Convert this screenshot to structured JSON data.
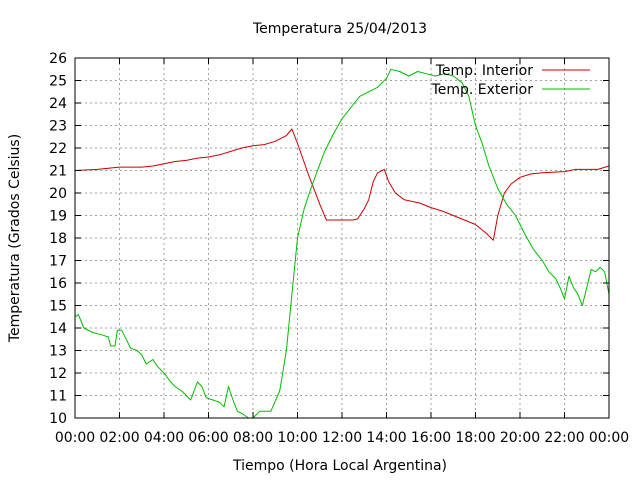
{
  "chart_data": {
    "type": "line",
    "title": "Temperatura 25/04/2013",
    "xlabel": "Tiempo (Hora Local Argentina)",
    "ylabel": "Temperatura (Grados Celsius)",
    "xlim": [
      0,
      24
    ],
    "ylim": [
      10,
      26
    ],
    "x_ticks": [
      "00:00",
      "02:00",
      "04:00",
      "06:00",
      "08:00",
      "10:00",
      "12:00",
      "14:00",
      "16:00",
      "18:00",
      "20:00",
      "22:00",
      "00:00"
    ],
    "y_ticks": [
      "10",
      "11",
      "12",
      "13",
      "14",
      "15",
      "16",
      "17",
      "18",
      "19",
      "20",
      "21",
      "22",
      "23",
      "24",
      "25",
      "26"
    ],
    "grid": true,
    "legend_position": "top-right",
    "series": [
      {
        "name": "Temp. Interior",
        "color": "#cc0000",
        "points": [
          [
            0.0,
            21.0
          ],
          [
            1.0,
            21.05
          ],
          [
            1.5,
            21.1
          ],
          [
            2.0,
            21.15
          ],
          [
            3.0,
            21.15
          ],
          [
            3.5,
            21.2
          ],
          [
            4.0,
            21.3
          ],
          [
            4.5,
            21.4
          ],
          [
            5.0,
            21.45
          ],
          [
            5.5,
            21.55
          ],
          [
            6.0,
            21.6
          ],
          [
            6.5,
            21.7
          ],
          [
            7.0,
            21.85
          ],
          [
            7.5,
            22.0
          ],
          [
            8.0,
            22.1
          ],
          [
            8.5,
            22.15
          ],
          [
            9.0,
            22.3
          ],
          [
            9.5,
            22.55
          ],
          [
            9.75,
            22.85
          ],
          [
            10.0,
            22.2
          ],
          [
            10.5,
            20.8
          ],
          [
            11.0,
            19.5
          ],
          [
            11.3,
            18.8
          ],
          [
            12.0,
            18.8
          ],
          [
            12.5,
            18.8
          ],
          [
            12.7,
            18.85
          ],
          [
            13.0,
            19.3
          ],
          [
            13.2,
            19.7
          ],
          [
            13.4,
            20.5
          ],
          [
            13.6,
            20.9
          ],
          [
            13.9,
            21.05
          ],
          [
            14.1,
            20.5
          ],
          [
            14.4,
            20.0
          ],
          [
            14.8,
            19.7
          ],
          [
            15.5,
            19.55
          ],
          [
            16.0,
            19.35
          ],
          [
            16.5,
            19.2
          ],
          [
            17.0,
            19.0
          ],
          [
            17.5,
            18.8
          ],
          [
            18.0,
            18.6
          ],
          [
            18.5,
            18.2
          ],
          [
            18.8,
            17.9
          ],
          [
            19.0,
            19.0
          ],
          [
            19.3,
            20.0
          ],
          [
            19.6,
            20.4
          ],
          [
            20.0,
            20.7
          ],
          [
            20.5,
            20.85
          ],
          [
            21.0,
            20.9
          ],
          [
            22.0,
            20.95
          ],
          [
            22.5,
            21.05
          ],
          [
            23.5,
            21.05
          ],
          [
            24.0,
            21.2
          ]
        ]
      },
      {
        "name": "Temp. Exterior",
        "color": "#00bb00",
        "points": [
          [
            0.0,
            14.5
          ],
          [
            0.15,
            14.6
          ],
          [
            0.4,
            14.0
          ],
          [
            0.8,
            13.8
          ],
          [
            1.2,
            13.7
          ],
          [
            1.5,
            13.6
          ],
          [
            1.6,
            13.2
          ],
          [
            1.8,
            13.2
          ],
          [
            1.9,
            13.9
          ],
          [
            2.1,
            13.9
          ],
          [
            2.3,
            13.5
          ],
          [
            2.5,
            13.1
          ],
          [
            2.8,
            13.0
          ],
          [
            3.0,
            12.8
          ],
          [
            3.2,
            12.4
          ],
          [
            3.5,
            12.6
          ],
          [
            3.7,
            12.3
          ],
          [
            4.0,
            12.0
          ],
          [
            4.3,
            11.6
          ],
          [
            4.5,
            11.4
          ],
          [
            4.8,
            11.2
          ],
          [
            5.0,
            11.0
          ],
          [
            5.2,
            10.8
          ],
          [
            5.5,
            11.6
          ],
          [
            5.7,
            11.4
          ],
          [
            5.9,
            10.9
          ],
          [
            6.2,
            10.8
          ],
          [
            6.5,
            10.7
          ],
          [
            6.7,
            10.5
          ],
          [
            6.9,
            11.4
          ],
          [
            7.1,
            10.8
          ],
          [
            7.3,
            10.3
          ],
          [
            7.5,
            10.2
          ],
          [
            7.8,
            10.0
          ],
          [
            8.0,
            10.0
          ],
          [
            8.3,
            10.3
          ],
          [
            8.8,
            10.3
          ],
          [
            9.2,
            11.2
          ],
          [
            9.5,
            13.0
          ],
          [
            9.75,
            15.5
          ],
          [
            10.0,
            18.0
          ],
          [
            10.3,
            19.3
          ],
          [
            10.6,
            20.2
          ],
          [
            10.9,
            21.0
          ],
          [
            11.2,
            21.8
          ],
          [
            11.6,
            22.6
          ],
          [
            12.0,
            23.3
          ],
          [
            12.4,
            23.8
          ],
          [
            12.8,
            24.3
          ],
          [
            13.2,
            24.5
          ],
          [
            13.6,
            24.7
          ],
          [
            14.0,
            25.1
          ],
          [
            14.2,
            25.5
          ],
          [
            14.6,
            25.4
          ],
          [
            15.0,
            25.2
          ],
          [
            15.4,
            25.4
          ],
          [
            15.8,
            25.3
          ],
          [
            16.2,
            25.2
          ],
          [
            16.6,
            25.3
          ],
          [
            17.0,
            25.2
          ],
          [
            17.4,
            24.9
          ],
          [
            17.7,
            24.3
          ],
          [
            18.0,
            23.0
          ],
          [
            18.3,
            22.2
          ],
          [
            18.6,
            21.2
          ],
          [
            19.0,
            20.2
          ],
          [
            19.4,
            19.5
          ],
          [
            19.8,
            19.0
          ],
          [
            20.2,
            18.2
          ],
          [
            20.6,
            17.5
          ],
          [
            21.0,
            17.0
          ],
          [
            21.3,
            16.5
          ],
          [
            21.6,
            16.2
          ],
          [
            21.8,
            15.8
          ],
          [
            22.0,
            15.3
          ],
          [
            22.2,
            16.3
          ],
          [
            22.4,
            15.8
          ],
          [
            22.6,
            15.5
          ],
          [
            22.8,
            15.0
          ],
          [
            23.0,
            15.8
          ],
          [
            23.2,
            16.6
          ],
          [
            23.4,
            16.5
          ],
          [
            23.6,
            16.7
          ],
          [
            23.8,
            16.5
          ],
          [
            24.0,
            15.5
          ]
        ]
      }
    ]
  }
}
